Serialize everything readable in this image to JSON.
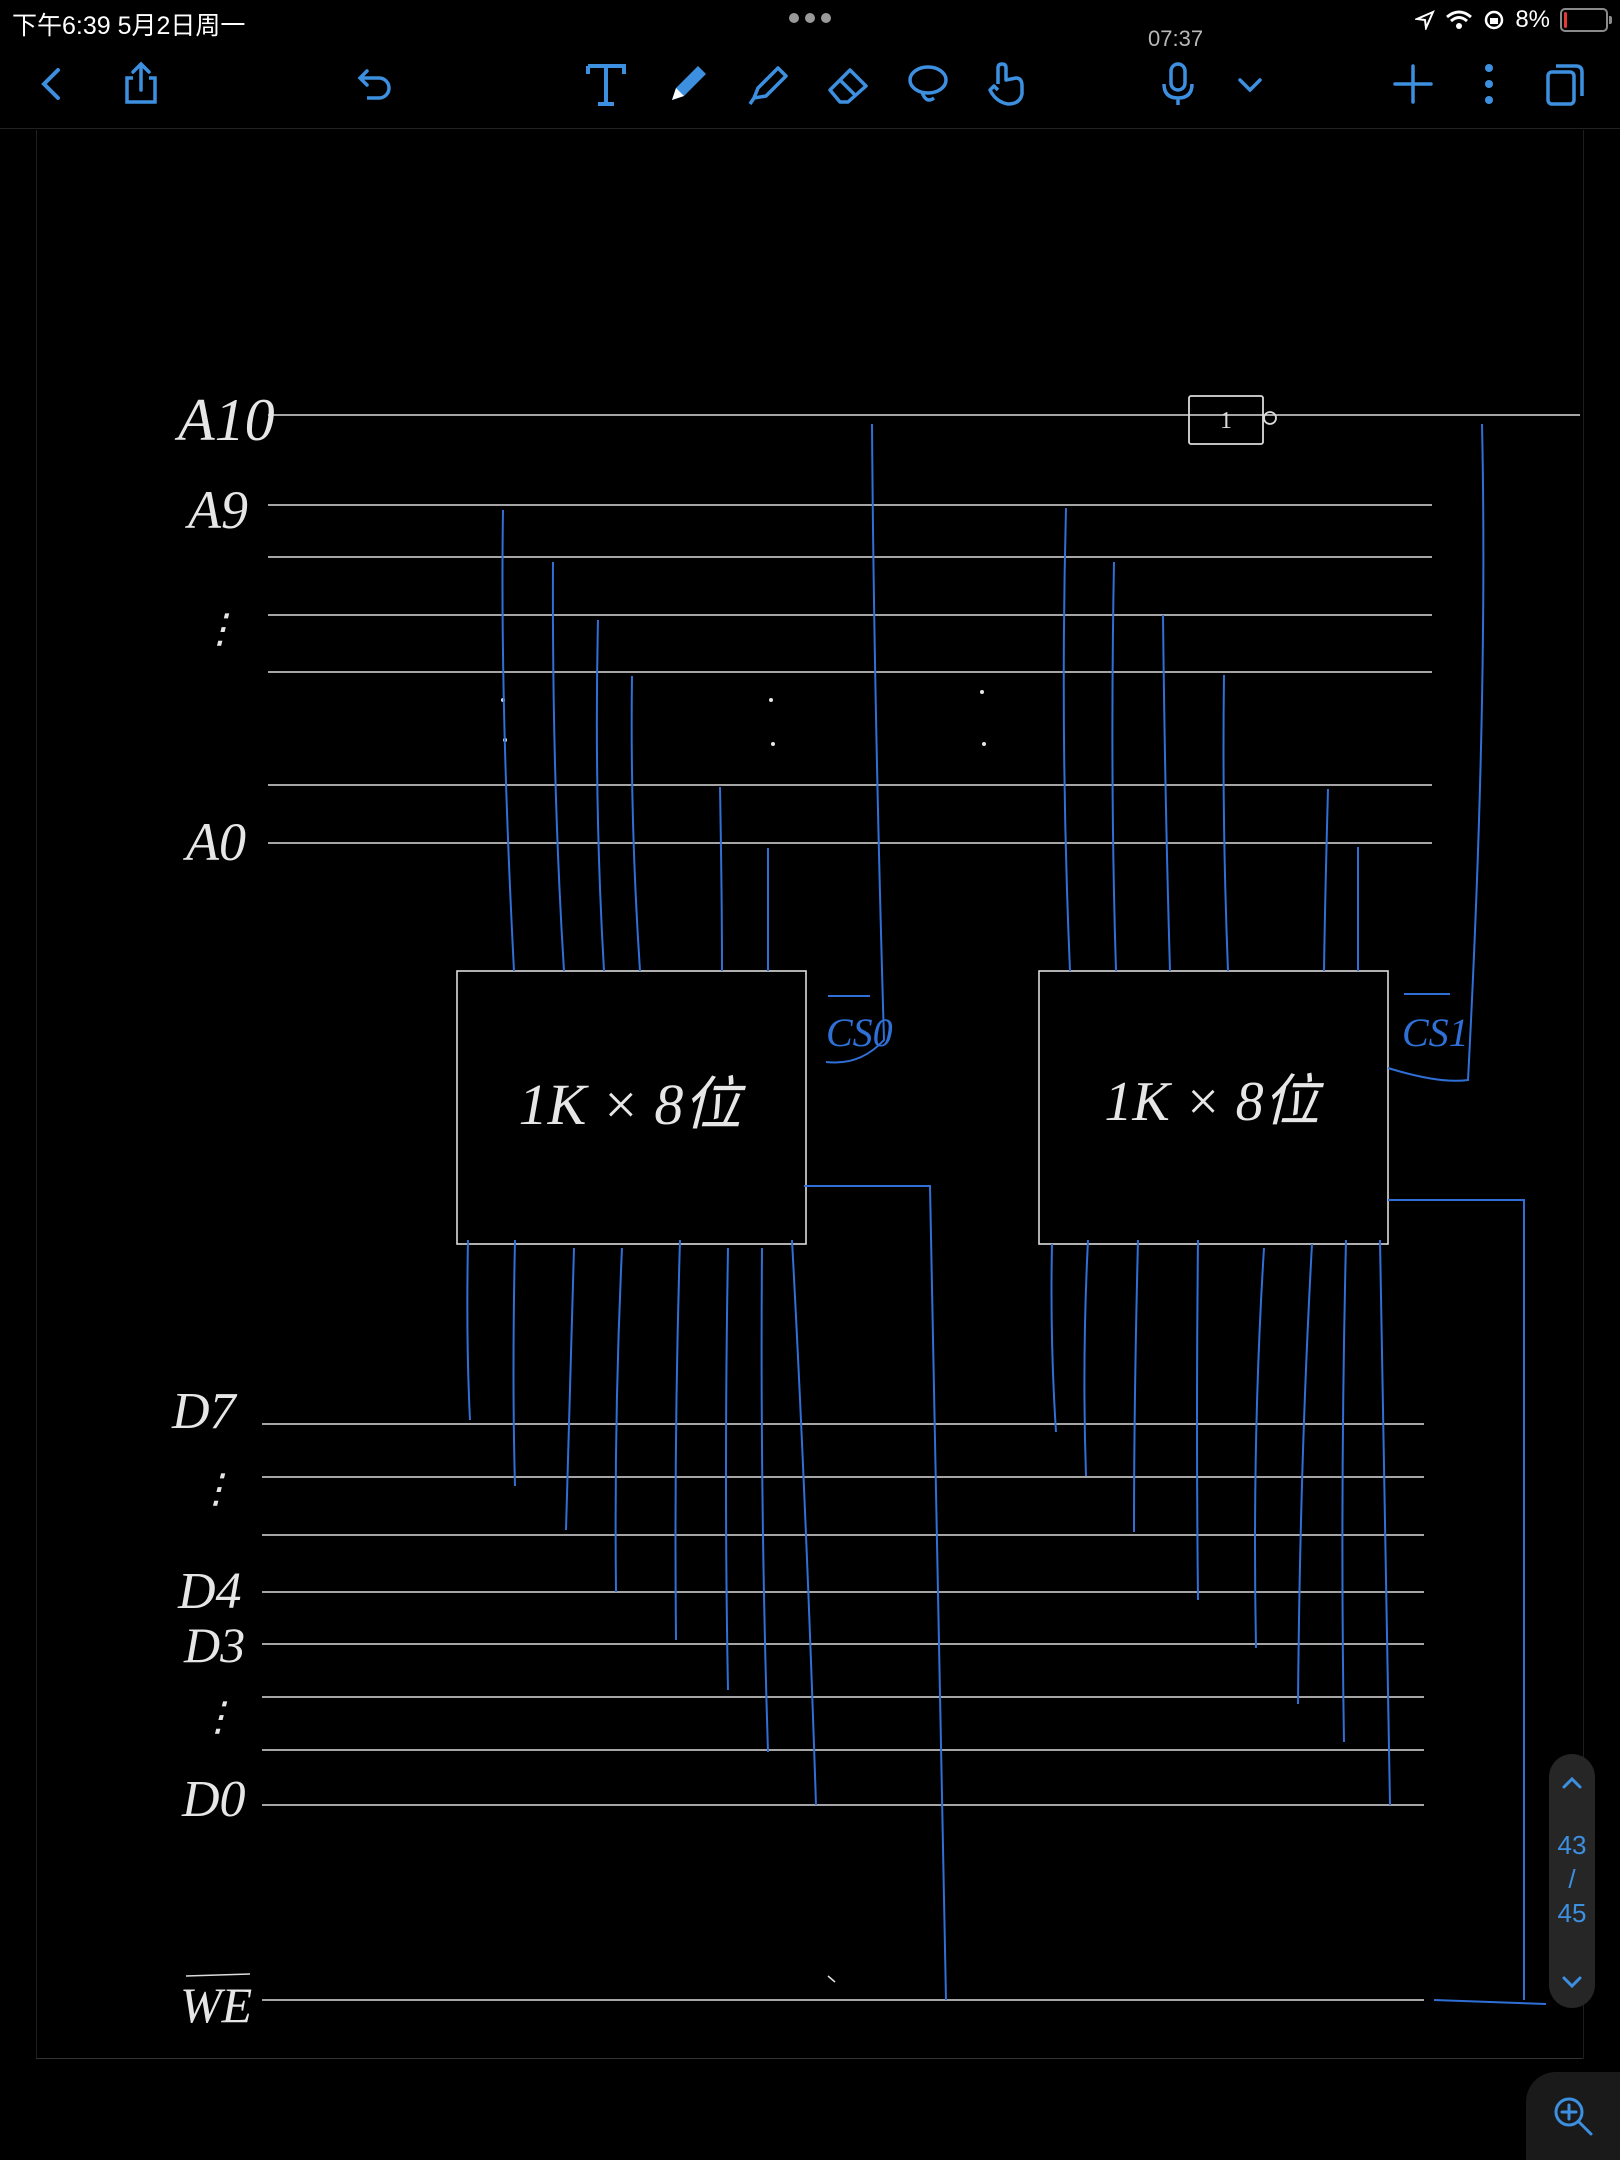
{
  "status": {
    "time": "下午6:39   5月2日周一",
    "battery": "8%",
    "battery_level": 0.08
  },
  "recording": {
    "elapsed": "07:37"
  },
  "handwriting": {
    "address_labels": [
      "A10",
      "A9",
      "⋮",
      "A0"
    ],
    "data_labels": [
      "D7",
      "⋮",
      "D4",
      "D3",
      "⋮",
      "D0"
    ],
    "we_label": "WE",
    "chip1_label": "1K × 8位",
    "chip2_label": "1K × 8位",
    "cs0_label": "CS0",
    "cs1_label": "CS1",
    "inverter_label": "1"
  },
  "pager": {
    "current": "43",
    "separator": "/",
    "total": "45"
  },
  "colors": {
    "accent": "#3d8fe0",
    "ink_blue": "#2f6fd6",
    "ink_white": "#e6e6e6",
    "background": "#000000"
  }
}
